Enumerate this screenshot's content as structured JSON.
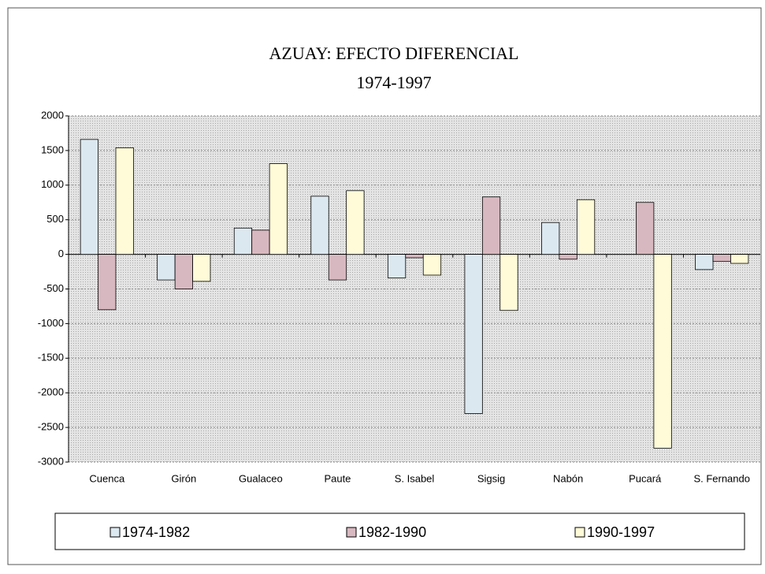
{
  "chart_data": {
    "type": "bar",
    "title": "AZUAY: EFECTO DIFERENCIAL",
    "subtitle": "1974-1997",
    "categories": [
      "Cuenca",
      "Girón",
      "Gualaceo",
      "Paute",
      "S. Isabel",
      "Sigsig",
      "Nabón",
      "Pucará",
      "S. Fernando"
    ],
    "series": [
      {
        "name": "1974-1982",
        "color": "#dce8ef",
        "values": [
          1660,
          -370,
          380,
          840,
          -340,
          -2300,
          460,
          0,
          -220
        ]
      },
      {
        "name": "1982-1990",
        "color": "#d8b8c0",
        "values": [
          -800,
          -500,
          350,
          -370,
          -50,
          830,
          -70,
          750,
          -100
        ]
      },
      {
        "name": "1990-1997",
        "color": "#fffbd8",
        "values": [
          1540,
          -390,
          1310,
          920,
          -300,
          -810,
          790,
          -2800,
          -130
        ]
      }
    ],
    "ylim": [
      -3000,
      2000
    ],
    "yticks": [
      -3000,
      -2500,
      -2000,
      -1500,
      -1000,
      -500,
      0,
      500,
      1000,
      1500,
      2000
    ],
    "grid": true,
    "legend": "bottom"
  }
}
